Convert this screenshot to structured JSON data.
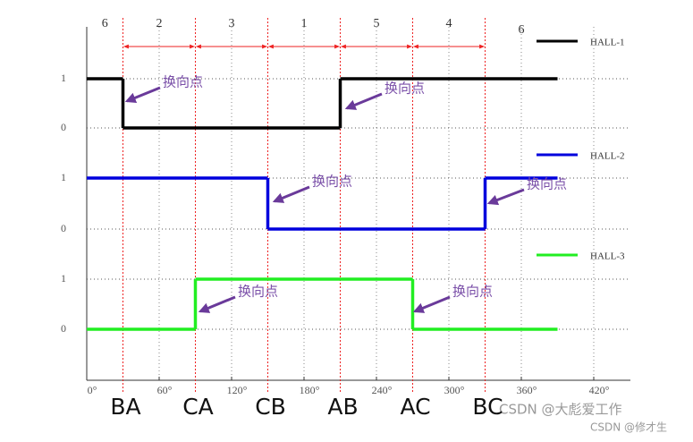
{
  "chart_data": {
    "type": "step",
    "x": [
      0,
      30,
      90,
      150,
      210,
      270,
      330,
      390
    ],
    "series": [
      {
        "name": "HALL-1",
        "color": "#000000",
        "values": [
          1,
          0,
          0,
          0,
          1,
          1,
          1,
          1
        ]
      },
      {
        "name": "HALL-2",
        "color": "#0000dd",
        "values": [
          1,
          1,
          1,
          0,
          0,
          0,
          1,
          1
        ]
      },
      {
        "name": "HALL-3",
        "color": "#22ee22",
        "values": [
          0,
          0,
          1,
          1,
          1,
          0,
          0,
          0
        ]
      }
    ],
    "xlim": [
      0,
      450
    ],
    "xticks": [
      {
        "value": 0,
        "label": "0°"
      },
      {
        "value": 60,
        "label": "60°"
      },
      {
        "value": 120,
        "label": "120°"
      },
      {
        "value": 180,
        "label": "180°"
      },
      {
        "value": 240,
        "label": "240°"
      },
      {
        "value": 300,
        "label": "300°"
      },
      {
        "value": 360,
        "label": "360°"
      },
      {
        "value": 420,
        "label": "420°"
      }
    ],
    "yticks": [
      0,
      1
    ],
    "sectors": [
      "6",
      "2",
      "3",
      "1",
      "5",
      "4",
      "6"
    ],
    "phases": [
      "BA",
      "CA",
      "CB",
      "AB",
      "AC",
      "BC"
    ],
    "annotations": [
      "换向点",
      "换向点",
      "换向点",
      "换向点",
      "换向点",
      "换向点"
    ],
    "grid": true
  },
  "watermark": [
    "CSDN @大彪爱工作",
    "CSDN @修才生"
  ]
}
